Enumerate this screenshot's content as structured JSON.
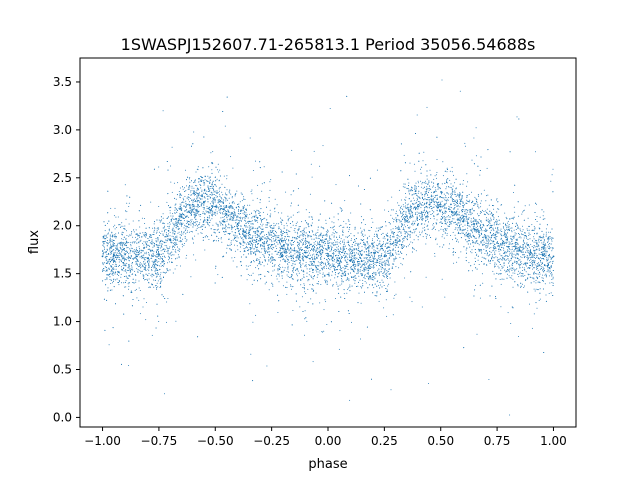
{
  "chart_data": {
    "type": "scatter",
    "title": "1SWASPJ152607.71-265813.1 Period 35056.54688s",
    "xlabel": "phase",
    "ylabel": "flux",
    "xlim": [
      -1.1,
      1.1
    ],
    "ylim": [
      -0.1,
      3.75
    ],
    "grid": false,
    "legend": "none",
    "xticks": [
      -1.0,
      -0.75,
      -0.5,
      -0.25,
      0.0,
      0.25,
      0.5,
      0.75,
      1.0
    ],
    "xtick_labels": [
      "−1.00",
      "−0.75",
      "−0.50",
      "−0.25",
      "0.00",
      "0.25",
      "0.50",
      "0.75",
      "1.00"
    ],
    "yticks": [
      0.0,
      0.5,
      1.0,
      1.5,
      2.0,
      2.5,
      3.0,
      3.5
    ],
    "ytick_labels": [
      "0.0",
      "0.5",
      "1.0",
      "1.5",
      "2.0",
      "2.5",
      "3.0",
      "3.5"
    ],
    "series": [
      {
        "color": "#1f77b4",
        "x": [
          -1.0,
          -0.95,
          -0.9,
          -0.85,
          -0.8,
          -0.75,
          -0.7,
          -0.65,
          -0.6,
          -0.55,
          -0.5,
          -0.45,
          -0.4,
          -0.35,
          -0.3,
          -0.25,
          -0.2,
          -0.15,
          -0.1,
          -0.05,
          0.0,
          0.05,
          0.1,
          0.15,
          0.2,
          0.25,
          0.3,
          0.35,
          0.4,
          0.45,
          0.5,
          0.55,
          0.6,
          0.65,
          0.7,
          0.75,
          0.8,
          0.85,
          0.9,
          0.95,
          1.0
        ],
        "y": [
          1.68,
          1.7,
          1.7,
          1.68,
          1.66,
          1.7,
          1.85,
          2.1,
          2.22,
          2.25,
          2.2,
          2.12,
          2.02,
          1.93,
          1.85,
          1.8,
          1.76,
          1.74,
          1.72,
          1.7,
          1.68,
          1.66,
          1.64,
          1.63,
          1.63,
          1.68,
          1.85,
          2.1,
          2.2,
          2.22,
          2.2,
          2.14,
          2.05,
          1.96,
          1.88,
          1.82,
          1.78,
          1.74,
          1.72,
          1.7,
          1.68
        ]
      }
    ]
  }
}
